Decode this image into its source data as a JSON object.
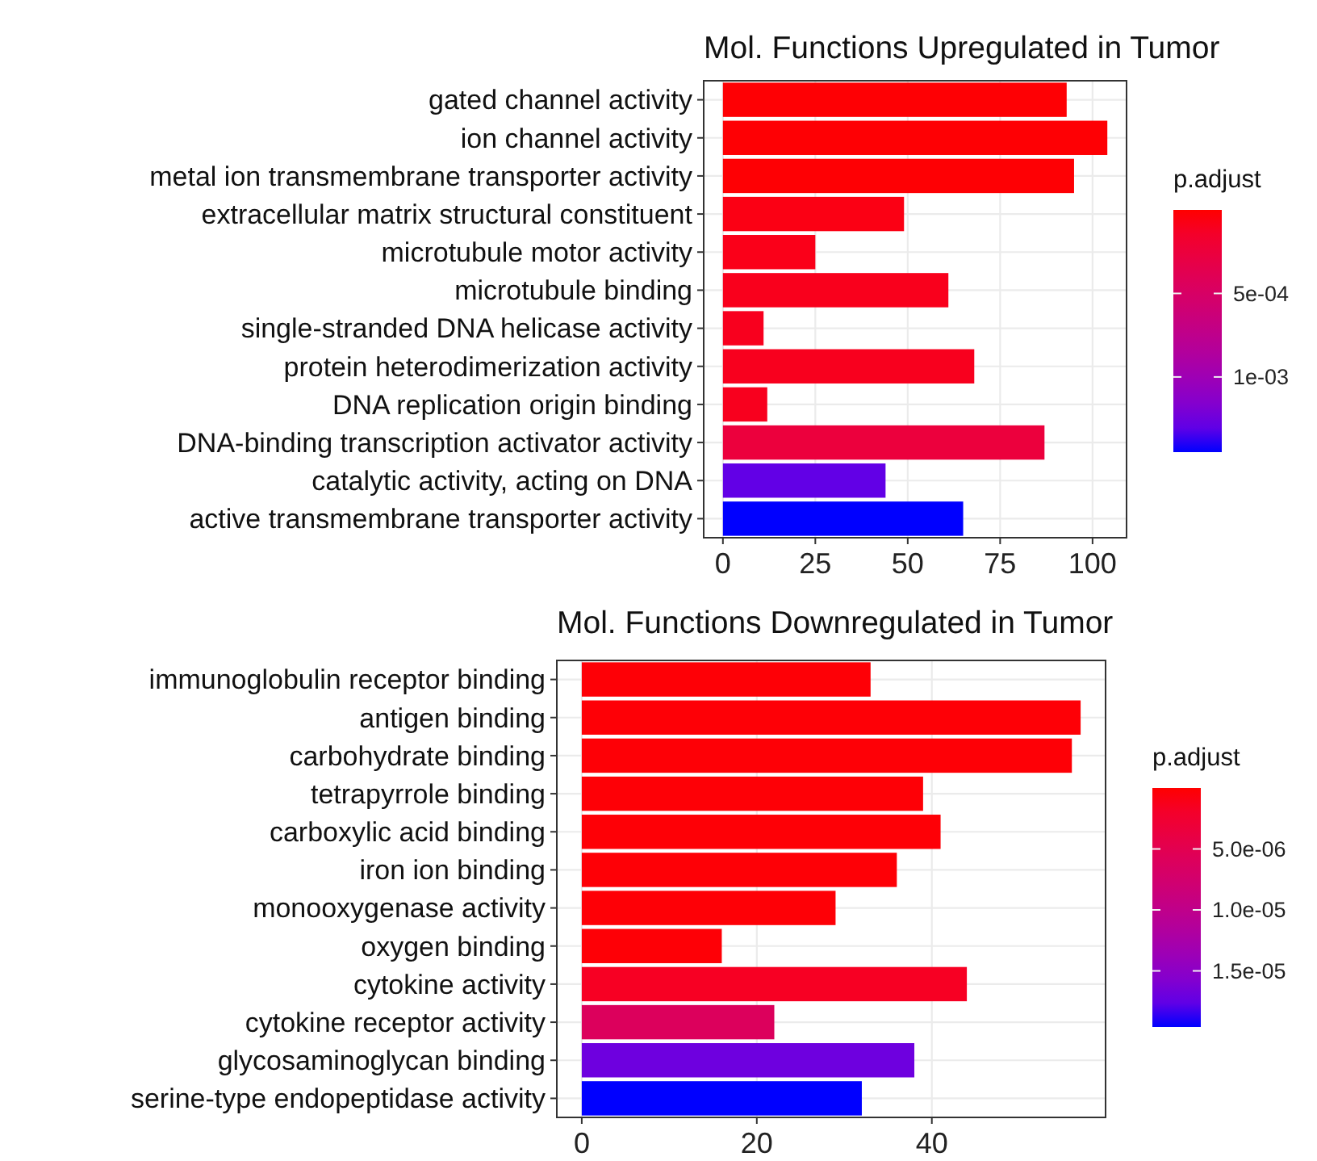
{
  "chart_data": [
    {
      "type": "bar",
      "orientation": "horizontal",
      "title": "Mol. Functions Upregulated in Tumor",
      "categories": [
        "gated channel activity",
        "ion channel activity",
        "metal ion transmembrane transporter activity",
        "extracellular matrix structural constituent",
        "microtubule motor activity",
        "microtubule binding",
        "single-stranded DNA helicase activity",
        "protein heterodimerization activity",
        "DNA replication origin binding",
        "DNA-binding transcription activator activity",
        "catalytic activity, acting on DNA",
        "active transmembrane transporter activity"
      ],
      "values": [
        93,
        104,
        95,
        49,
        25,
        61,
        11,
        68,
        12,
        87,
        44,
        65
      ],
      "cvalues": [
        1e-05,
        1e-05,
        1e-05,
        5e-05,
        7e-05,
        8e-05,
        9e-05,
        9e-05,
        9e-05,
        0.00025,
        0.0013,
        0.00145
      ],
      "clabel": "p.adjust",
      "clim": [
        0,
        0.00145
      ],
      "cticks": [
        {
          "value": 0.0005,
          "label": "5e-04"
        },
        {
          "value": 0.001,
          "label": "1e-03"
        }
      ],
      "xlim": [
        -5.2,
        109.2
      ],
      "xticks": [
        0,
        25,
        50,
        75,
        100
      ],
      "grid": true
    },
    {
      "type": "bar",
      "orientation": "horizontal",
      "title": "Mol. Functions Downregulated in Tumor",
      "categories": [
        "immunoglobulin receptor binding",
        "antigen binding",
        "carbohydrate binding",
        "tetrapyrrole binding",
        "carboxylic acid binding",
        "iron ion binding",
        "monooxygenase activity",
        "oxygen binding",
        "cytokine activity",
        "cytokine receptor activity",
        "glycosaminoglycan binding",
        "serine-type endopeptidase activity"
      ],
      "values": [
        33,
        57,
        56,
        39,
        41,
        36,
        29,
        16,
        44,
        22,
        38,
        32
      ],
      "cvalues": [
        2e-07,
        2e-07,
        2e-07,
        2e-07,
        2e-07,
        2e-07,
        2e-07,
        2e-07,
        1.5e-06,
        6e-06,
        1.7e-05,
        1.96e-05
      ],
      "clabel": "p.adjust",
      "clim": [
        0,
        1.96e-05
      ],
      "cticks": [
        {
          "value": 5e-06,
          "label": "5.0e-06"
        },
        {
          "value": 1e-05,
          "label": "1.0e-05"
        },
        {
          "value": 1.5e-05,
          "label": "1.5e-05"
        }
      ],
      "xlim": [
        -2.85,
        59.85
      ],
      "xticks": [
        0,
        20,
        40
      ],
      "grid": true
    }
  ]
}
